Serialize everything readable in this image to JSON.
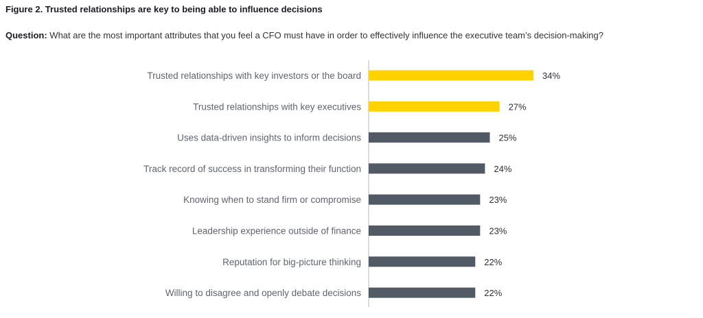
{
  "figure_title": "Figure 2. Trusted relationships are key to being able to influence decisions",
  "question": {
    "label": "Question:",
    "text": "What are the most important attributes that you feel a CFO must have in order to effectively influence the executive team’s decision-making?"
  },
  "colors": {
    "highlight": "#ffd200",
    "default": "#525a65",
    "axis": "#b8b8b8"
  },
  "chart_data": {
    "type": "bar",
    "orientation": "horizontal",
    "categories": [
      "Trusted relationships with key investors or the board",
      "Trusted relationships with key executives",
      "Uses data-driven insights to inform decisions",
      "Track record of success in transforming their function",
      "Knowing when to stand firm or compromise",
      "Leadership experience outside of finance",
      "Reputation for big-picture thinking",
      "Willing to disagree and openly debate decisions"
    ],
    "values": [
      34,
      27,
      25,
      24,
      23,
      23,
      22,
      22
    ],
    "value_labels": [
      "34%",
      "27%",
      "25%",
      "24%",
      "23%",
      "23%",
      "22%",
      "22%"
    ],
    "highlighted": [
      true,
      true,
      false,
      false,
      false,
      false,
      false,
      false
    ],
    "unit": "%",
    "xlim": [
      0,
      34
    ],
    "grid": false
  }
}
